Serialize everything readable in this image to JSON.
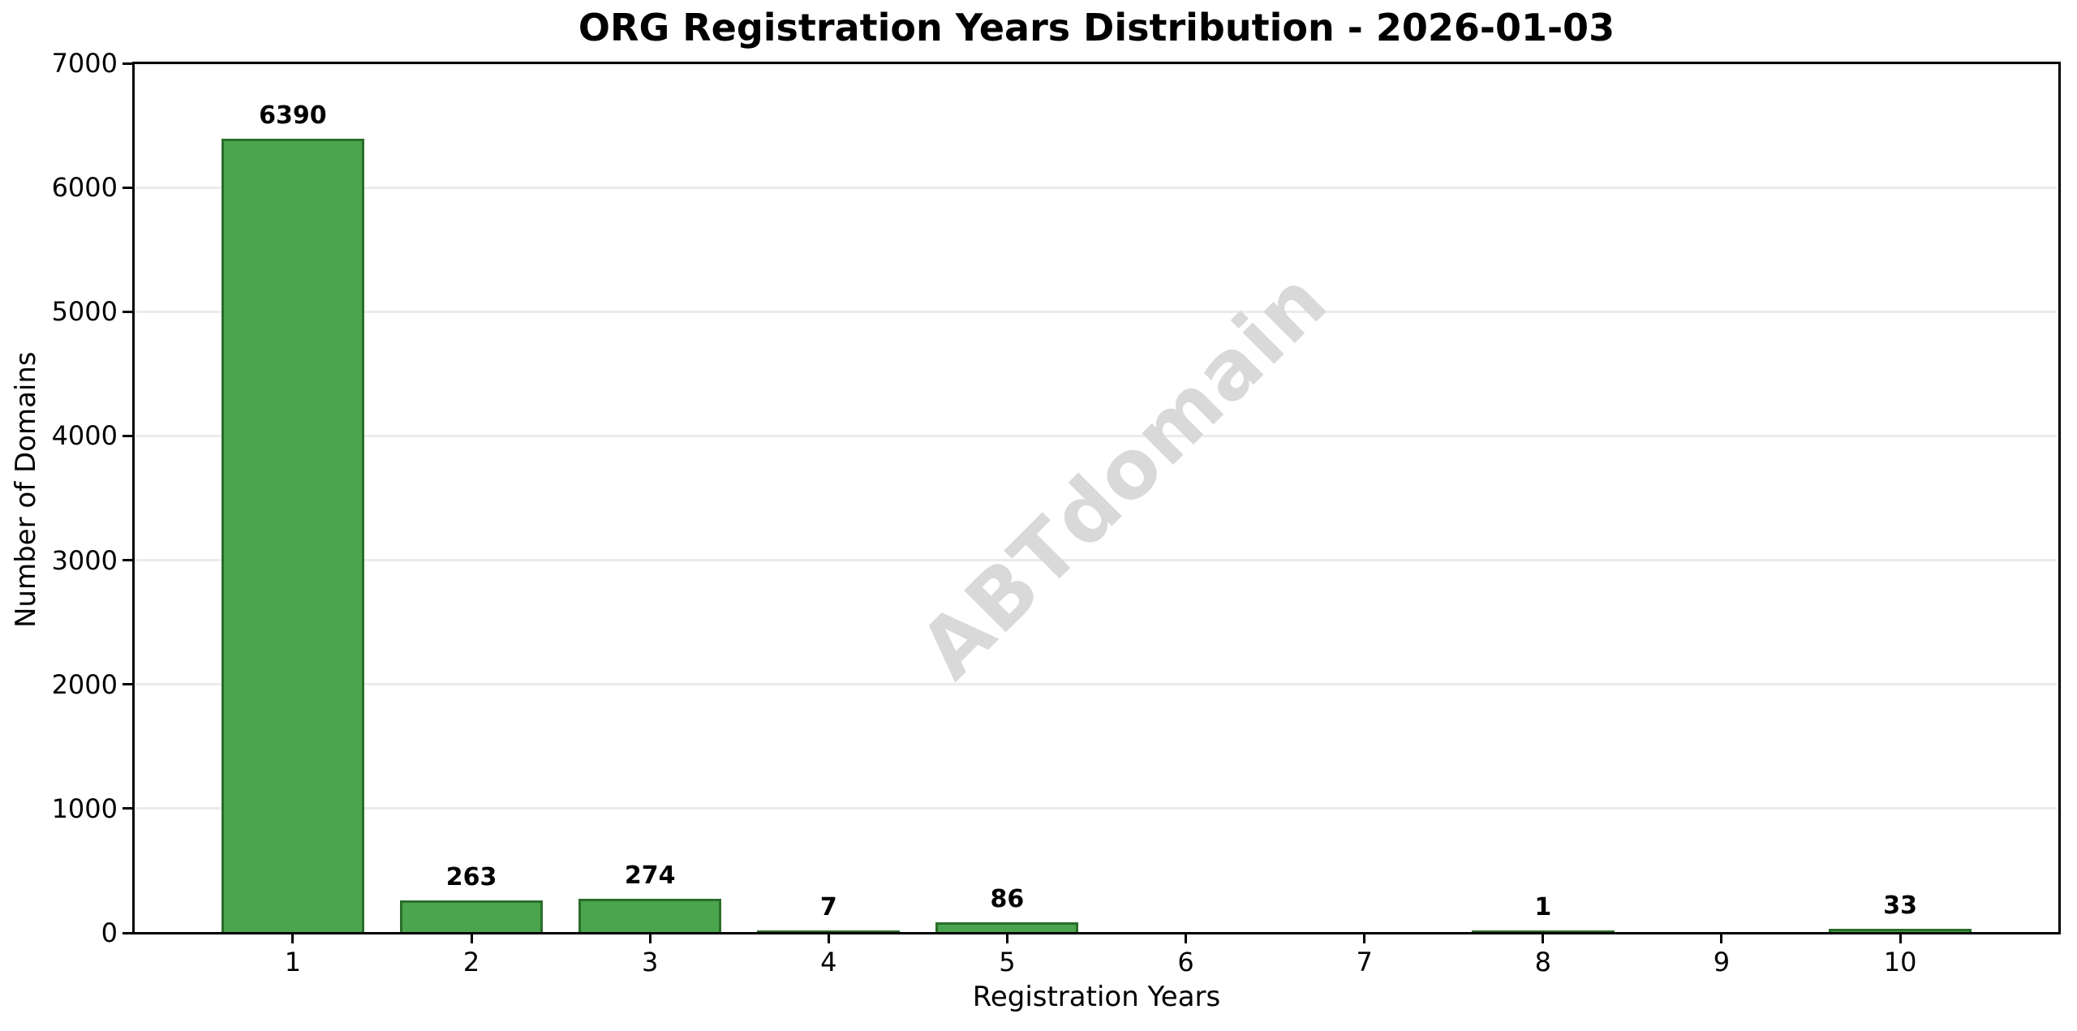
{
  "chart_data": {
    "type": "bar",
    "title": "ORG Registration Years Distribution - 2026-01-03",
    "xlabel": "Registration Years",
    "ylabel": "Number of Domains",
    "categories": [
      "1",
      "2",
      "3",
      "4",
      "5",
      "6",
      "7",
      "8",
      "9",
      "10"
    ],
    "values": [
      6390,
      263,
      274,
      7,
      86,
      0,
      0,
      1,
      0,
      33
    ],
    "bar_labels": [
      "6390",
      "263",
      "274",
      "7",
      "86",
      "",
      "",
      "1",
      "",
      "33"
    ],
    "ylim": [
      0,
      7000
    ],
    "yticks": [
      0,
      1000,
      2000,
      3000,
      4000,
      5000,
      6000,
      7000
    ],
    "ytick_labels": [
      "0",
      "1000",
      "2000",
      "3000",
      "4000",
      "5000",
      "6000",
      "7000"
    ],
    "grid": true,
    "legend": "none",
    "watermark": "ABTdomain",
    "colors": {
      "bar_fill": "#4ba44e",
      "bar_edge": "#2a6e2b",
      "grid": "#ebebeb",
      "watermark": "#d9d9d9",
      "text": "#000000",
      "background": "#ffffff"
    }
  }
}
